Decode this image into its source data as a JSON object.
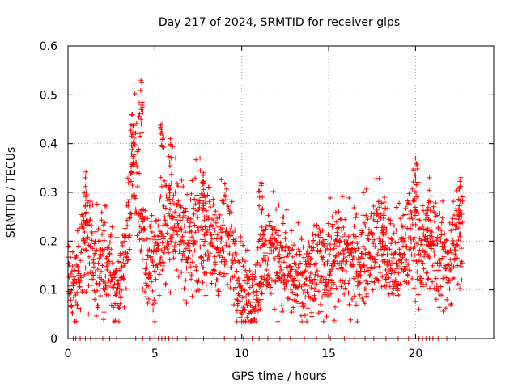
{
  "chart_data": {
    "type": "scatter",
    "title": "Day 217 of 2024, SRMTID for receiver glps",
    "xlabel": "GPS time / hours",
    "ylabel": "SRMTID / TECUs",
    "xlim": [
      0,
      24.5
    ],
    "ylim": [
      0,
      0.6
    ],
    "xticks": [
      0,
      5,
      10,
      15,
      20
    ],
    "xtick_labels": [
      "0",
      "5",
      "10",
      "15",
      "20"
    ],
    "yticks": [
      0,
      0.1,
      0.2,
      0.3,
      0.4,
      0.5,
      0.6
    ],
    "ytick_labels": [
      "0",
      "0.1",
      "0.2",
      "0.3",
      "0.4",
      "0.5",
      "0.6"
    ],
    "grid": true,
    "marker": "plus",
    "color": "#ff0000",
    "x_range_hours": [
      0,
      22.7
    ],
    "trend": [
      {
        "t": 0.0,
        "y": 0.12
      },
      {
        "t": 0.5,
        "y": 0.11
      },
      {
        "t": 1.0,
        "y": 0.23
      },
      {
        "t": 1.5,
        "y": 0.15
      },
      {
        "t": 2.0,
        "y": 0.16
      },
      {
        "t": 2.5,
        "y": 0.14
      },
      {
        "t": 3.0,
        "y": 0.12
      },
      {
        "t": 3.5,
        "y": 0.22
      },
      {
        "t": 3.8,
        "y": 0.4
      },
      {
        "t": 4.2,
        "y": 0.2
      },
      {
        "t": 4.6,
        "y": 0.15
      },
      {
        "t": 5.0,
        "y": 0.17
      },
      {
        "t": 5.5,
        "y": 0.22
      },
      {
        "t": 6.0,
        "y": 0.26
      },
      {
        "t": 6.5,
        "y": 0.22
      },
      {
        "t": 7.0,
        "y": 0.19
      },
      {
        "t": 7.5,
        "y": 0.24
      },
      {
        "t": 8.0,
        "y": 0.2
      },
      {
        "t": 8.5,
        "y": 0.19
      },
      {
        "t": 9.0,
        "y": 0.21
      },
      {
        "t": 9.5,
        "y": 0.19
      },
      {
        "t": 10.0,
        "y": 0.11
      },
      {
        "t": 10.5,
        "y": 0.08
      },
      {
        "t": 11.0,
        "y": 0.13
      },
      {
        "t": 11.5,
        "y": 0.17
      },
      {
        "t": 12.0,
        "y": 0.19
      },
      {
        "t": 12.5,
        "y": 0.15
      },
      {
        "t": 13.0,
        "y": 0.12
      },
      {
        "t": 13.5,
        "y": 0.11
      },
      {
        "t": 14.0,
        "y": 0.13
      },
      {
        "t": 14.5,
        "y": 0.15
      },
      {
        "t": 15.0,
        "y": 0.16
      },
      {
        "t": 15.5,
        "y": 0.17
      },
      {
        "t": 16.0,
        "y": 0.17
      },
      {
        "t": 16.5,
        "y": 0.15
      },
      {
        "t": 17.0,
        "y": 0.17
      },
      {
        "t": 17.5,
        "y": 0.2
      },
      {
        "t": 18.0,
        "y": 0.21
      },
      {
        "t": 18.5,
        "y": 0.16
      },
      {
        "t": 19.0,
        "y": 0.15
      },
      {
        "t": 19.5,
        "y": 0.2
      },
      {
        "t": 20.0,
        "y": 0.23
      },
      {
        "t": 20.5,
        "y": 0.17
      },
      {
        "t": 21.0,
        "y": 0.2
      },
      {
        "t": 21.5,
        "y": 0.16
      },
      {
        "t": 22.0,
        "y": 0.16
      },
      {
        "t": 22.4,
        "y": 0.22
      },
      {
        "t": 22.7,
        "y": 0.18
      }
    ],
    "peaks": [
      {
        "t": 1.0,
        "y": 0.33
      },
      {
        "t": 3.7,
        "y": 0.46
      },
      {
        "t": 4.2,
        "y": 0.53
      },
      {
        "t": 5.4,
        "y": 0.44
      },
      {
        "t": 5.9,
        "y": 0.41
      },
      {
        "t": 7.8,
        "y": 0.34
      },
      {
        "t": 11.1,
        "y": 0.32
      },
      {
        "t": 18.2,
        "y": 0.28
      },
      {
        "t": 20.0,
        "y": 0.37
      },
      {
        "t": 20.8,
        "y": 0.33
      },
      {
        "t": 22.6,
        "y": 0.33
      }
    ],
    "zero_points_hours": [
      0.3,
      0.45,
      0.7,
      1.0,
      1.3,
      1.6,
      2.0,
      2.4,
      2.8,
      3.9,
      4.3,
      4.7,
      5.2,
      5.4,
      5.6,
      5.8,
      6.0,
      6.3,
      6.8,
      7.2,
      7.8,
      8.4,
      9.0,
      9.6,
      10.1,
      10.6,
      11.0,
      11.5,
      12.2,
      12.8,
      13.6,
      14.3,
      15.1,
      15.9,
      16.5,
      17.1,
      17.6,
      18.3,
      19.0,
      19.6,
      20.2,
      20.4,
      20.6,
      20.8,
      21.0,
      21.3,
      21.8,
      22.3
    ]
  }
}
